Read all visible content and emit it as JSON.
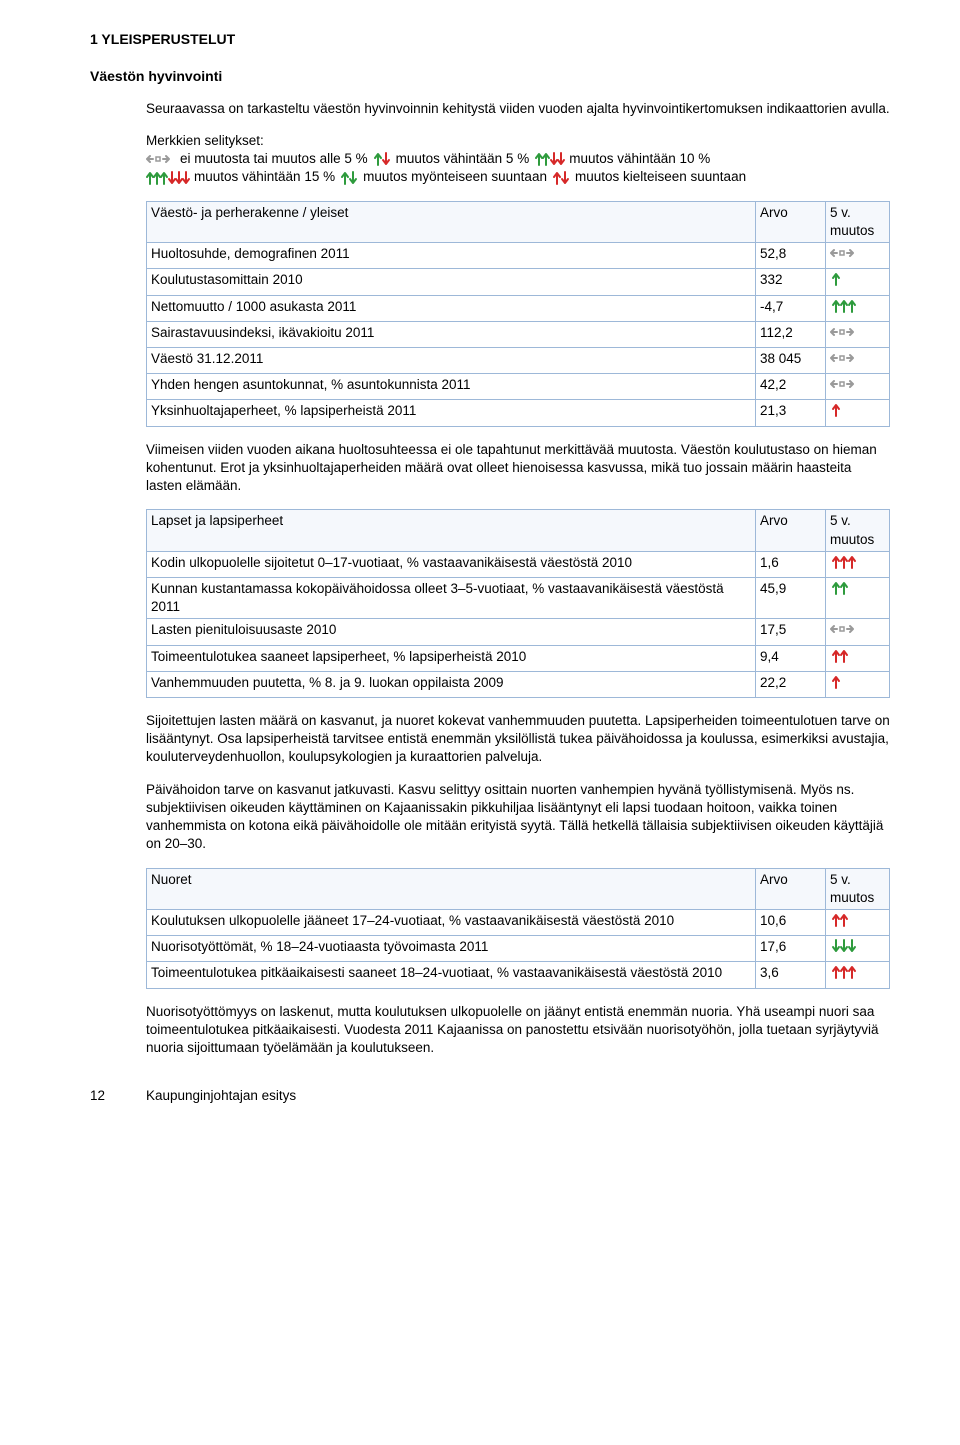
{
  "heading1": "1  YLEISPERUSTELUT",
  "heading2": "Väestön hyvinvointi",
  "intro": "Seuraavassa on tarkasteltu väestön hyvinvoinnin kehitystä viiden vuoden ajalta hyvinvointikertomuksen indikaattorien avulla.",
  "legend_title": "Merkkien selitykset:",
  "legend": {
    "no_change": "ei muutosta tai muutos alle 5 %",
    "chg5": "muutos vähintään 5 %",
    "chg10": "muutos vähintään 10 %",
    "chg15": "muutos vähintään 15 %",
    "pos": "muutos myönteiseen suuntaan",
    "neg": "muutos kielteiseen suuntaan"
  },
  "colors": {
    "border": "#9db8d8",
    "arrow_green": "#2e9b3d",
    "arrow_red": "#d62828",
    "arrow_grey": "#9a9a9a"
  },
  "t1": {
    "header1": "Väestö- ja perherakenne / yleiset",
    "header2": "Arvo",
    "header3": "5 v. muutos",
    "rows": [
      {
        "label": "Huoltosuhde, demografinen 2011",
        "value": "52,8",
        "icon": "flat-grey"
      },
      {
        "label": "Koulutustasomittain 2010",
        "value": "332",
        "icon": "up1-green"
      },
      {
        "label": "Nettomuutto / 1000 asukasta 2011",
        "value": "-4,7",
        "icon": "up3-green"
      },
      {
        "label": "Sairastavuusindeksi, ikävakioitu 2011",
        "value": "112,2",
        "icon": "flat-grey"
      },
      {
        "label": "Väestö 31.12.2011",
        "value": "38 045",
        "icon": "flat-grey"
      },
      {
        "label": "Yhden hengen asuntokunnat, % asuntokunnista 2011",
        "value": "42,2",
        "icon": "flat-grey"
      },
      {
        "label": "Yksinhuoltajaperheet, % lapsiperheistä 2011",
        "value": "21,3",
        "icon": "up1-red"
      }
    ]
  },
  "para_after_t1": "Viimeisen viiden vuoden aikana huoltosuhteessa ei ole tapahtunut merkittävää muutosta. Väestön koulutustaso on hieman kohentunut. Erot ja yksinhuoltajaperheiden määrä ovat olleet hienoisessa kasvussa, mikä tuo jossain määrin haasteita lasten elämään.",
  "t2": {
    "header1": "Lapset ja lapsiperheet",
    "header2": "Arvo",
    "header3": "5 v. muutos",
    "rows": [
      {
        "label": "Kodin ulkopuolelle sijoitetut 0–17-vuotiaat, % vastaavanikäisestä väestöstä 2010",
        "value": "1,6",
        "icon": "up3-red"
      },
      {
        "label": "Kunnan kustantamassa kokopäivähoidossa olleet 3–5-vuotiaat, % vastaavanikäisestä väestöstä 2011",
        "value": "45,9",
        "icon": "up2-green"
      },
      {
        "label": "Lasten pienituloisuusaste 2010",
        "value": "17,5",
        "icon": "flat-grey"
      },
      {
        "label": "Toimeentulotukea saaneet lapsiperheet, % lapsiperheistä 2010",
        "value": "9,4",
        "icon": "up2-red"
      },
      {
        "label": "Vanhemmuuden puutetta, % 8. ja 9. luokan oppilaista 2009",
        "value": "22,2",
        "icon": "up1-red"
      }
    ]
  },
  "para_after_t2a": "Sijoitettujen lasten määrä on kasvanut, ja nuoret kokevat vanhemmuuden puutetta. Lapsiperheiden toimeentulotuen tarve on lisääntynyt. Osa lapsiperheistä tarvitsee entistä enemmän yksilöllistä tukea päivähoidossa ja koulussa, esimerkiksi avustajia, kouluterveydenhuollon, koulupsykologien ja kuraattorien palveluja.",
  "para_after_t2b": "Päivähoidon tarve on kasvanut jatkuvasti. Kasvu selittyy osittain nuorten vanhempien hyvänä työllistymisenä. Myös ns. subjektiivisen oikeuden käyttäminen on Kajaanissakin pikkuhiljaa lisääntynyt eli lapsi tuodaan hoitoon, vaikka toinen vanhemmista on kotona eikä päivähoidolle ole mitään erityistä syytä. Tällä hetkellä tällaisia subjektiivisen oikeuden käyttäjiä on 20–30.",
  "t3": {
    "header1": "Nuoret",
    "header2": "Arvo",
    "header3": "5 v. muutos",
    "rows": [
      {
        "label": "Koulutuksen ulkopuolelle jääneet 17–24-vuotiaat, % vastaavanikäisestä väestöstä 2010",
        "value": "10,6",
        "icon": "up2-red"
      },
      {
        "label": "Nuorisotyöttömät, % 18–24-vuotiaasta työvoimasta 2011",
        "value": "17,6",
        "icon": "down3-green"
      },
      {
        "label": "Toimeentulotukea pitkäaikaisesti saaneet 18–24-vuotiaat, % vastaavanikäisestä väestöstä 2010",
        "value": "3,6",
        "icon": "up3-red"
      }
    ]
  },
  "para_after_t3": "Nuorisotyöttömyys on laskenut, mutta koulutuksen ulkopuolelle on jäänyt entistä enemmän nuoria. Yhä useampi nuori saa toimeentulotukea pitkäaikaisesti. Vuodesta 2011 Kajaanissa on panostettu etsivään nuorisotyöhön, jolla tuetaan syrjäytyviä nuoria sijoittumaan työelämään ja koulutukseen.",
  "footer_page": "12",
  "footer_text": "Kaupunginjohtajan esitys"
}
